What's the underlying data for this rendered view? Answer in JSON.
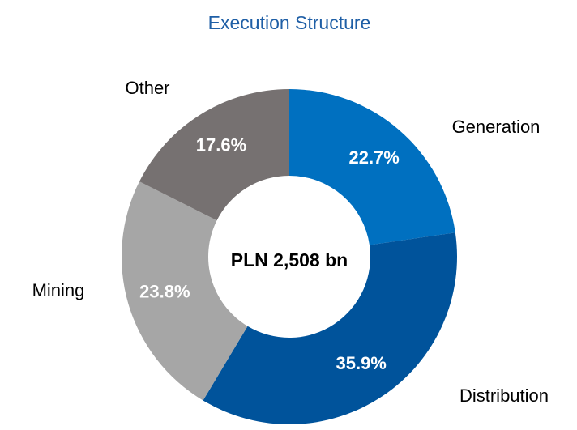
{
  "chart_data": {
    "type": "donut",
    "title": "Execution Structure",
    "center_label": "PLN 2,508 bn",
    "categories": [
      "Generation",
      "Distribution",
      "Mining",
      "Other"
    ],
    "values": [
      22.7,
      35.9,
      23.8,
      17.6
    ],
    "value_labels": [
      "22.7%",
      "35.9%",
      "23.8%",
      "17.6%"
    ],
    "colors": [
      "#0070c0",
      "#00539b",
      "#a6a6a6",
      "#767171"
    ]
  }
}
